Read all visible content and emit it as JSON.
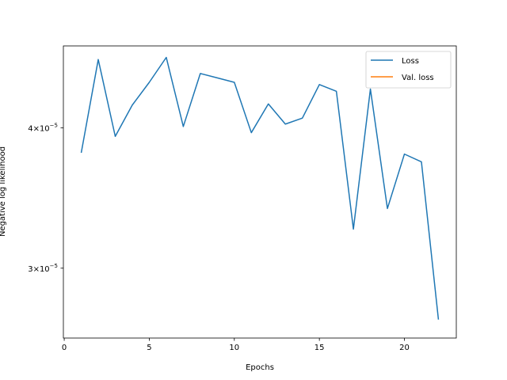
{
  "chart_data": {
    "type": "line",
    "xlabel": "Epochs",
    "ylabel": "Negative log likelihood",
    "yscale": "log",
    "xlim": [
      -0.05,
      23.05
    ],
    "ylim": [
      2.6e-05,
      4.73e-05
    ],
    "xticks": [
      0,
      5,
      10,
      15,
      20
    ],
    "xtick_labels": [
      "0",
      "5",
      "10",
      "15",
      "20"
    ],
    "yticks": [
      3e-05,
      4e-05
    ],
    "ytick_labels": [
      {
        "base": "3",
        "times": "×10",
        "exp": "−5"
      },
      {
        "base": "4",
        "times": "×10",
        "exp": "−5"
      }
    ],
    "legend_position": "top-right",
    "grid": false,
    "series": [
      {
        "name": "Loss",
        "color": "#1f77b4",
        "x": [
          1,
          2,
          3,
          4,
          5,
          6,
          7,
          8,
          9,
          10,
          11,
          12,
          13,
          14,
          15,
          16,
          17,
          18,
          19,
          20,
          21,
          22
        ],
        "y": [
          3.8e-05,
          4.6e-05,
          3.93e-05,
          4.19e-05,
          4.39e-05,
          4.62e-05,
          4.01e-05,
          4.47e-05,
          4.43e-05,
          4.39e-05,
          3.96e-05,
          4.2e-05,
          4.03e-05,
          4.08e-05,
          4.37e-05,
          4.31e-05,
          3.25e-05,
          4.33e-05,
          3.39e-05,
          3.79e-05,
          3.73e-05,
          2.7e-05
        ]
      },
      {
        "name": "Val. loss",
        "color": "#ff7f0e",
        "x": [],
        "y": []
      }
    ]
  }
}
